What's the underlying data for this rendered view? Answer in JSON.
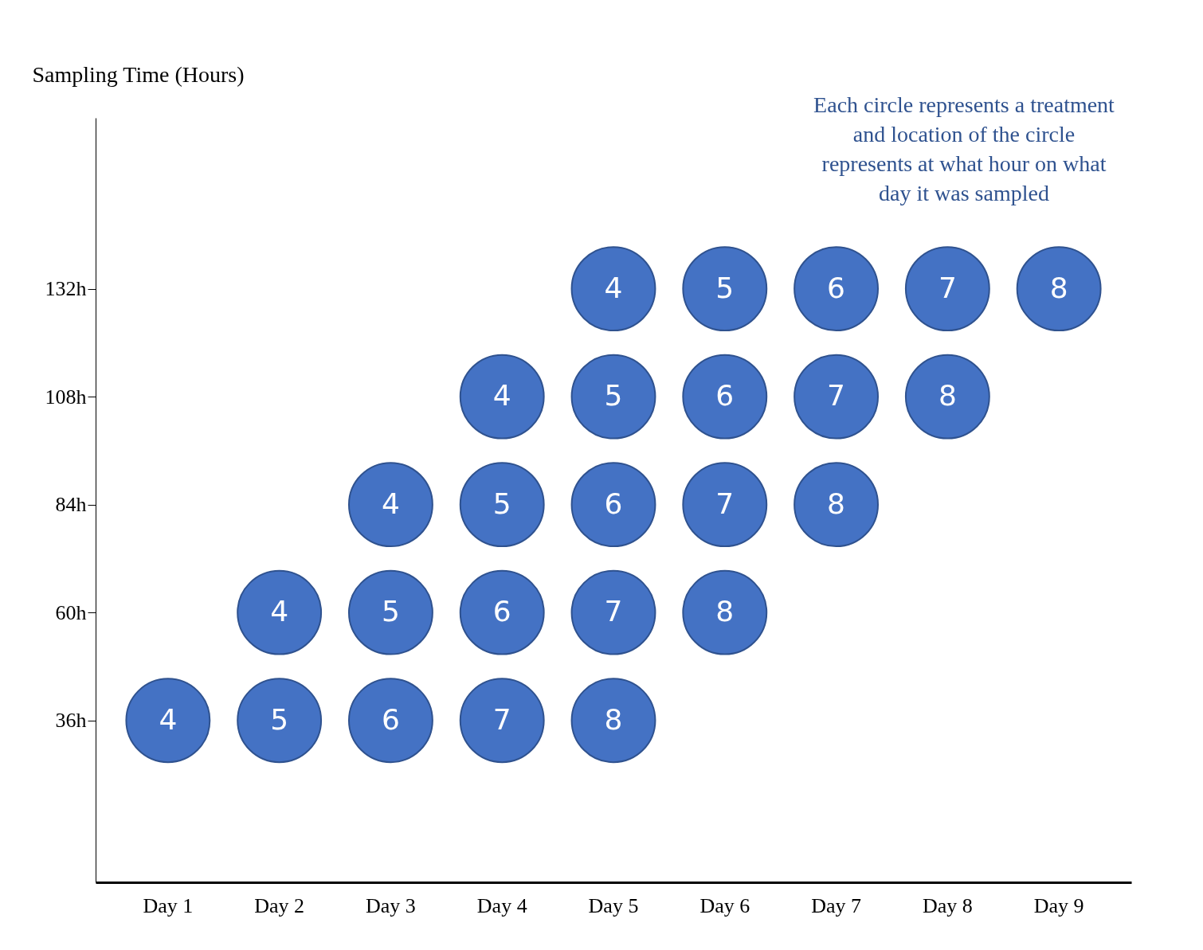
{
  "chart_data": {
    "type": "scatter",
    "ylabel": "Sampling Time (Hours)",
    "categories": [
      "Day 1",
      "Day 2",
      "Day 3",
      "Day 4",
      "Day 5",
      "Day 6",
      "Day 7",
      "Day 8",
      "Day 9"
    ],
    "series": [
      {
        "name": "4",
        "color": "#4472c4",
        "values": [
          36,
          60,
          84,
          108,
          132,
          null,
          null,
          null,
          null
        ]
      },
      {
        "name": "5",
        "color": "#4472c4",
        "values": [
          null,
          36,
          60,
          84,
          108,
          132,
          null,
          null,
          null
        ]
      },
      {
        "name": "6",
        "color": "#4472c4",
        "values": [
          null,
          null,
          36,
          60,
          84,
          108,
          132,
          null,
          null
        ]
      },
      {
        "name": "7",
        "color": "#4472c4",
        "values": [
          null,
          null,
          null,
          36,
          60,
          84,
          108,
          132,
          null
        ]
      },
      {
        "name": "8",
        "color": "#4472c4",
        "values": [
          null,
          null,
          null,
          null,
          36,
          60,
          84,
          108,
          132
        ]
      }
    ],
    "ylim": [
      0,
      170
    ],
    "yticks": [
      {
        "value": 36,
        "label": "36h"
      },
      {
        "value": 60,
        "label": "60h"
      },
      {
        "value": 84,
        "label": "84h"
      },
      {
        "value": 108,
        "label": "108h"
      },
      {
        "value": 132,
        "label": "132h"
      }
    ],
    "grid": false,
    "marker": "circle",
    "annotations": [
      "Each circle represents a treatment and location of the circle represents at what hour on what day it was sampled"
    ]
  }
}
